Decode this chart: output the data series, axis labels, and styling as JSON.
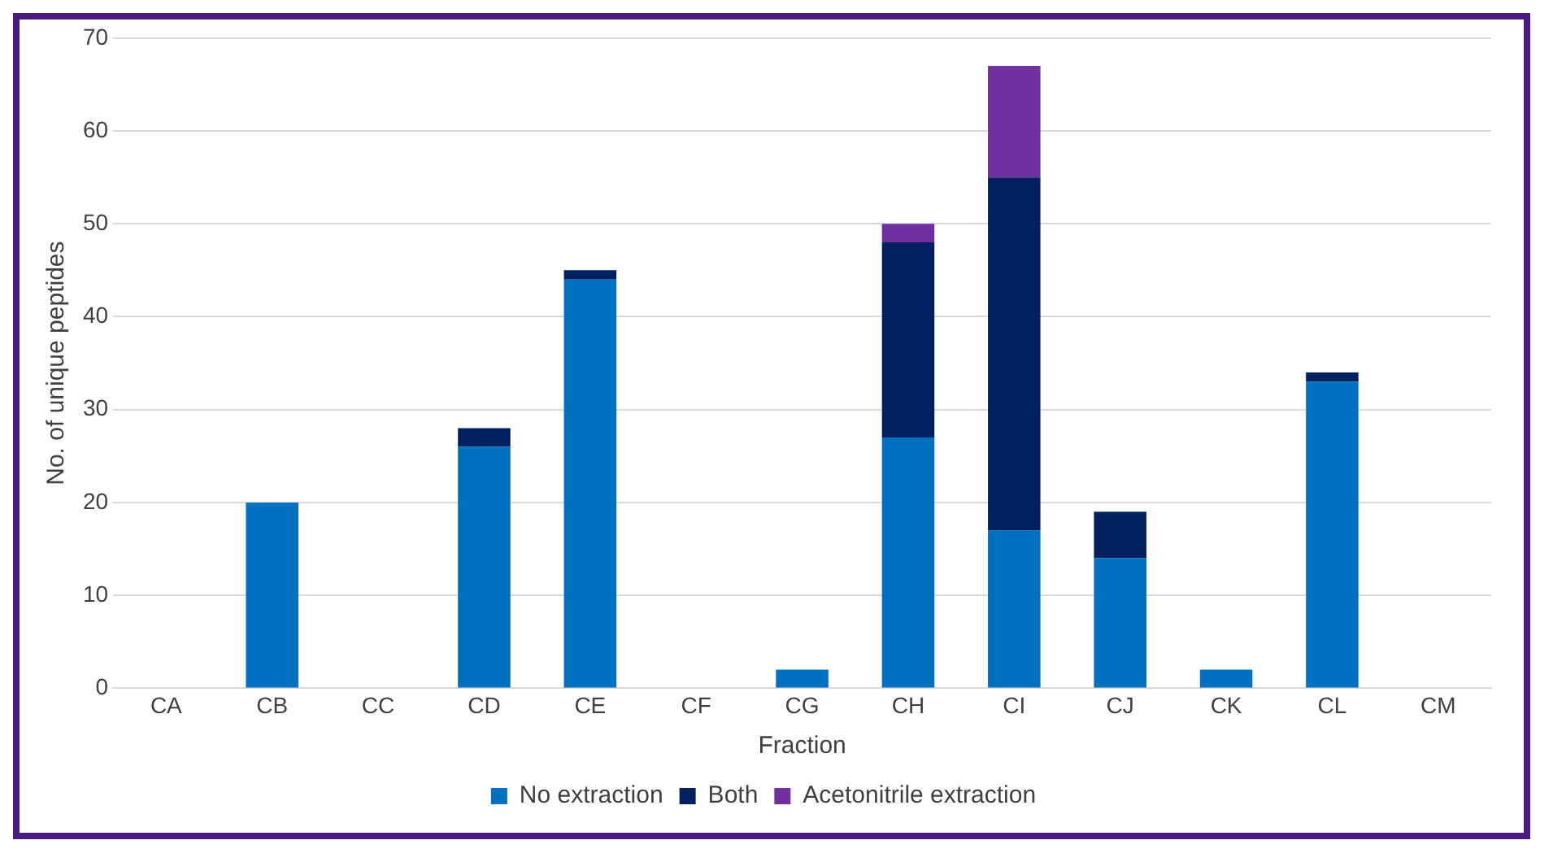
{
  "chart_data": {
    "type": "bar",
    "stacked": true,
    "xlabel": "Fraction",
    "ylabel": "No. of unique peptides",
    "categories": [
      "CA",
      "CB",
      "CC",
      "CD",
      "CE",
      "CF",
      "CG",
      "CH",
      "CI",
      "CJ",
      "CK",
      "CL",
      "CM"
    ],
    "series": [
      {
        "name": "No extraction",
        "color": "#0070c0",
        "values": [
          0,
          20,
          0,
          26,
          44,
          0,
          2,
          27,
          17,
          14,
          2,
          33,
          0
        ]
      },
      {
        "name": "Both",
        "color": "#002060",
        "values": [
          0,
          0,
          0,
          2,
          1,
          0,
          0,
          21,
          38,
          5,
          0,
          1,
          0
        ]
      },
      {
        "name": "Acetonitrile extraction",
        "color": "#7030a0",
        "values": [
          0,
          0,
          0,
          0,
          0,
          0,
          0,
          2,
          12,
          0,
          0,
          0,
          0
        ]
      }
    ],
    "ylim": [
      0,
      70
    ],
    "yticks": [
      0,
      10,
      20,
      30,
      40,
      50,
      60,
      70
    ],
    "grid": "y",
    "legend": "bottom"
  }
}
